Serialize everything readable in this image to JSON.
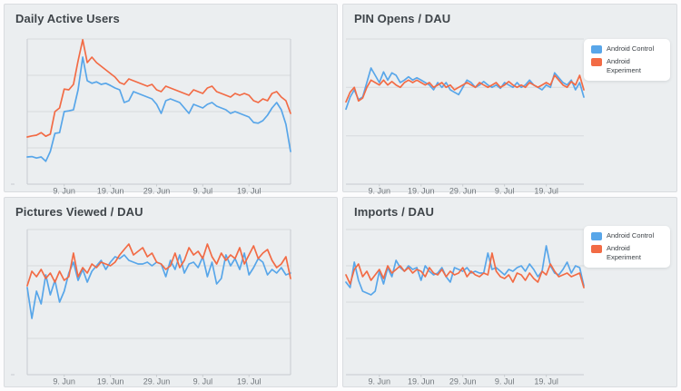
{
  "colors": {
    "android_control": "#58A6E9",
    "android_experiment": "#F26B45",
    "card_background": "#ebeef0",
    "gridline": "#d7dadd",
    "axis": "#c7cbcf",
    "axis_label": "#70767b",
    "title_text": "#3f454a"
  },
  "x_axis": {
    "num_days": 58,
    "tick_days": [
      8,
      18,
      28,
      38,
      48
    ],
    "tick_labels": [
      "9. Jun",
      "19. Jun",
      "29. Jun",
      "9. Jul",
      "19. Jul"
    ]
  },
  "chart_data": [
    {
      "type": "line",
      "title": "Daily Active Users",
      "ylim": [
        0,
        4
      ],
      "gridlines": [
        1,
        2,
        3,
        4
      ],
      "legend_visible": false,
      "legend_position": "right",
      "series": [
        {
          "name": "Android Control",
          "color": "#58A6E9",
          "values": [
            0.75,
            0.76,
            0.72,
            0.75,
            0.63,
            0.9,
            1.4,
            1.42,
            2.0,
            2.02,
            2.05,
            2.6,
            3.5,
            2.85,
            2.78,
            2.82,
            2.75,
            2.78,
            2.72,
            2.65,
            2.6,
            2.25,
            2.3,
            2.55,
            2.5,
            2.45,
            2.4,
            2.35,
            2.2,
            1.95,
            2.3,
            2.35,
            2.3,
            2.25,
            2.1,
            1.95,
            2.2,
            2.15,
            2.1,
            2.2,
            2.25,
            2.15,
            2.1,
            2.05,
            1.95,
            2.0,
            1.95,
            1.9,
            1.85,
            1.7,
            1.68,
            1.75,
            1.9,
            2.1,
            2.25,
            2.05,
            1.65,
            0.9
          ]
        },
        {
          "name": "Android Experiment",
          "color": "#F26B45",
          "values": [
            1.3,
            1.33,
            1.35,
            1.42,
            1.32,
            1.38,
            2.0,
            2.1,
            2.62,
            2.6,
            2.75,
            3.4,
            3.98,
            3.35,
            3.5,
            3.35,
            3.25,
            3.15,
            3.05,
            2.95,
            2.8,
            2.75,
            2.9,
            2.85,
            2.8,
            2.75,
            2.7,
            2.75,
            2.6,
            2.55,
            2.7,
            2.65,
            2.6,
            2.55,
            2.5,
            2.45,
            2.6,
            2.55,
            2.5,
            2.65,
            2.7,
            2.55,
            2.5,
            2.45,
            2.4,
            2.5,
            2.45,
            2.5,
            2.45,
            2.3,
            2.25,
            2.35,
            2.3,
            2.5,
            2.55,
            2.4,
            2.3,
            1.95
          ]
        }
      ]
    },
    {
      "type": "line",
      "title": "PIN Opens / DAU",
      "ylim": [
        0,
        3
      ],
      "gridlines": [
        1,
        2,
        3
      ],
      "legend_visible": true,
      "legend_position": "right",
      "series": [
        {
          "name": "Android Control",
          "color": "#58A6E9",
          "values": [
            1.55,
            1.8,
            1.95,
            1.75,
            1.8,
            2.1,
            2.4,
            2.25,
            2.1,
            2.32,
            2.15,
            2.3,
            2.25,
            2.1,
            2.15,
            2.22,
            2.15,
            2.2,
            2.15,
            2.1,
            2.05,
            1.95,
            2.1,
            2.0,
            2.1,
            1.95,
            1.9,
            1.85,
            2.0,
            2.15,
            2.1,
            2.0,
            2.05,
            2.12,
            2.05,
            2.0,
            2.05,
            1.98,
            2.1,
            2.05,
            2.0,
            2.1,
            2.0,
            2.05,
            2.15,
            2.05,
            2.0,
            1.95,
            2.05,
            2.0,
            2.3,
            2.2,
            2.1,
            2.05,
            2.15,
            1.95,
            2.1,
            1.8
          ]
        },
        {
          "name": "Android Experiment",
          "color": "#F26B45",
          "values": [
            1.7,
            1.9,
            2.0,
            1.72,
            1.78,
            2.0,
            2.15,
            2.1,
            2.05,
            2.15,
            2.05,
            2.12,
            2.05,
            2.0,
            2.1,
            2.15,
            2.1,
            2.15,
            2.1,
            2.05,
            2.1,
            2.0,
            2.05,
            2.1,
            2.0,
            2.05,
            1.95,
            2.0,
            2.05,
            2.1,
            2.05,
            2.0,
            2.1,
            2.05,
            2.0,
            2.05,
            2.1,
            2.0,
            2.05,
            2.12,
            2.05,
            2.0,
            2.05,
            2.0,
            2.1,
            2.05,
            2.0,
            2.05,
            2.1,
            2.05,
            2.25,
            2.15,
            2.05,
            2.0,
            2.12,
            2.05,
            2.25,
            1.95
          ]
        }
      ]
    },
    {
      "type": "line",
      "title": "Pictures Viewed / DAU",
      "ylim": [
        0,
        4
      ],
      "gridlines": [
        1,
        2,
        3,
        4
      ],
      "legend_visible": false,
      "legend_position": "right",
      "series": [
        {
          "name": "Android Control",
          "color": "#58A6E9",
          "values": [
            2.4,
            1.55,
            2.3,
            1.95,
            2.75,
            2.2,
            2.6,
            2.0,
            2.3,
            2.8,
            3.1,
            2.6,
            2.9,
            2.55,
            2.85,
            3.0,
            3.15,
            2.9,
            3.1,
            3.25,
            3.2,
            3.3,
            3.15,
            3.1,
            3.05,
            3.05,
            3.1,
            3.0,
            3.1,
            3.05,
            2.7,
            3.15,
            2.9,
            3.3,
            2.8,
            3.05,
            3.1,
            2.95,
            3.25,
            2.7,
            3.1,
            2.5,
            2.65,
            3.3,
            3.0,
            3.2,
            2.9,
            3.35,
            2.75,
            2.95,
            3.2,
            3.1,
            2.75,
            2.9,
            2.8,
            2.95,
            2.75,
            2.8
          ]
        },
        {
          "name": "Android Experiment",
          "color": "#F26B45",
          "values": [
            2.45,
            2.85,
            2.7,
            2.9,
            2.65,
            2.8,
            2.55,
            2.85,
            2.6,
            2.7,
            3.35,
            2.7,
            2.95,
            2.8,
            3.05,
            2.95,
            3.1,
            3.05,
            3.0,
            3.1,
            3.3,
            3.45,
            3.6,
            3.3,
            3.4,
            3.5,
            3.25,
            3.35,
            3.1,
            3.05,
            2.9,
            3.0,
            3.35,
            2.95,
            3.15,
            3.5,
            3.3,
            3.4,
            3.2,
            3.6,
            3.25,
            3.05,
            3.35,
            3.15,
            3.3,
            3.2,
            3.5,
            3.05,
            3.3,
            3.55,
            3.2,
            3.35,
            3.45,
            3.15,
            2.95,
            3.05,
            3.25,
            2.65
          ]
        }
      ]
    },
    {
      "type": "line",
      "title": "Imports / DAU",
      "ylim": [
        0,
        4
      ],
      "gridlines": [
        1,
        2,
        3,
        4
      ],
      "legend_visible": true,
      "legend_position": "right",
      "series": [
        {
          "name": "Android Control",
          "color": "#58A6E9",
          "values": [
            2.55,
            2.4,
            3.1,
            2.6,
            2.3,
            2.25,
            2.2,
            2.3,
            2.85,
            2.5,
            2.95,
            2.7,
            3.15,
            2.95,
            2.85,
            3.0,
            2.9,
            2.95,
            2.6,
            3.0,
            2.85,
            2.75,
            2.8,
            2.95,
            2.7,
            2.55,
            2.95,
            2.9,
            2.85,
            2.95,
            2.8,
            2.85,
            2.8,
            2.8,
            3.35,
            2.9,
            2.95,
            2.85,
            2.75,
            2.9,
            2.85,
            2.95,
            3.0,
            2.85,
            3.05,
            2.9,
            2.7,
            2.85,
            3.55,
            3.0,
            2.8,
            2.75,
            2.9,
            3.1,
            2.8,
            3.0,
            2.95,
            2.45
          ]
        },
        {
          "name": "Android Experiment",
          "color": "#F26B45",
          "values": [
            2.75,
            2.5,
            2.9,
            3.05,
            2.7,
            2.85,
            2.6,
            2.75,
            2.9,
            2.65,
            3.0,
            2.8,
            2.9,
            3.0,
            2.85,
            2.95,
            2.8,
            2.9,
            2.85,
            2.7,
            2.95,
            2.8,
            2.75,
            2.9,
            2.7,
            2.85,
            2.75,
            2.8,
            2.95,
            2.7,
            2.85,
            2.75,
            2.7,
            2.8,
            2.75,
            3.35,
            2.85,
            2.7,
            2.65,
            2.75,
            2.55,
            2.8,
            2.75,
            2.6,
            2.8,
            2.65,
            2.55,
            2.85,
            2.75,
            3.05,
            2.85,
            2.7,
            2.75,
            2.8,
            2.7,
            2.75,
            2.8,
            2.4
          ]
        }
      ]
    }
  ]
}
